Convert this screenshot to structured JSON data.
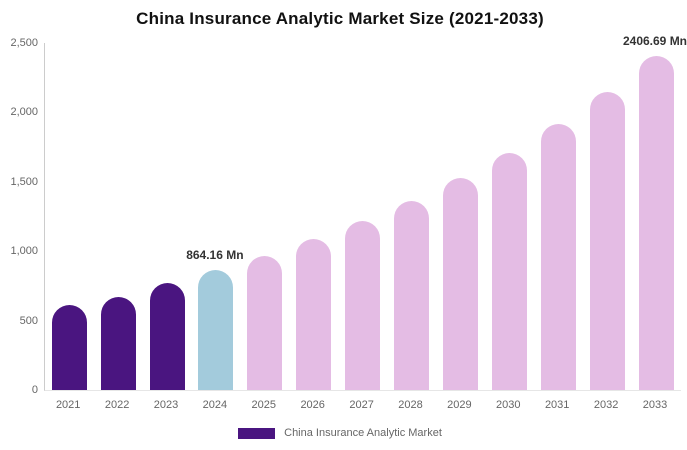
{
  "title": "China Insurance Analytic Market Size (2021-2033)",
  "legend": {
    "label": "China Insurance Analytic Market",
    "swatch_color": "#4a1580"
  },
  "colors": {
    "historical_bar": "#4a1580",
    "base_year_bar": "#a3cbdc",
    "forecast_bar": "#e4bce4",
    "title_text": "#111111",
    "axis_text": "#666666",
    "annotation_text": "#333333",
    "axis_line": "#cccccc"
  },
  "chart_data": {
    "type": "bar",
    "title": "China Insurance Analytic Market Size (2021-2033)",
    "xlabel": "",
    "ylabel": "",
    "unit": "Mn",
    "categories": [
      "2021",
      "2022",
      "2023",
      "2024",
      "2025",
      "2026",
      "2027",
      "2028",
      "2029",
      "2030",
      "2031",
      "2032",
      "2033"
    ],
    "values": [
      615,
      672,
      771,
      864.16,
      968,
      1085,
      1216,
      1362,
      1526,
      1710,
      1916,
      2147,
      2406.69
    ],
    "bar_colors": [
      "#4a1580",
      "#4a1580",
      "#4a1580",
      "#a3cbdc",
      "#e4bce4",
      "#e4bce4",
      "#e4bce4",
      "#e4bce4",
      "#e4bce4",
      "#e4bce4",
      "#e4bce4",
      "#e4bce4",
      "#e4bce4"
    ],
    "series": [
      {
        "name": "China Insurance Analytic Market",
        "values": [
          615,
          672,
          771,
          864.16,
          968,
          1085,
          1216,
          1362,
          1526,
          1710,
          1916,
          2147,
          2406.69
        ]
      }
    ],
    "annotations": [
      {
        "category": "2024",
        "text": "864.16 Mn"
      },
      {
        "category": "2033",
        "text": "2406.69 Mn"
      }
    ],
    "ylim": [
      0,
      2500
    ],
    "yticks": [
      0,
      500,
      1000,
      1500,
      2000,
      2500
    ],
    "ytick_labels": [
      "0",
      "500",
      "1,000",
      "1,500",
      "2,000",
      "2,500"
    ],
    "grid": false,
    "legend_position": "bottom"
  }
}
